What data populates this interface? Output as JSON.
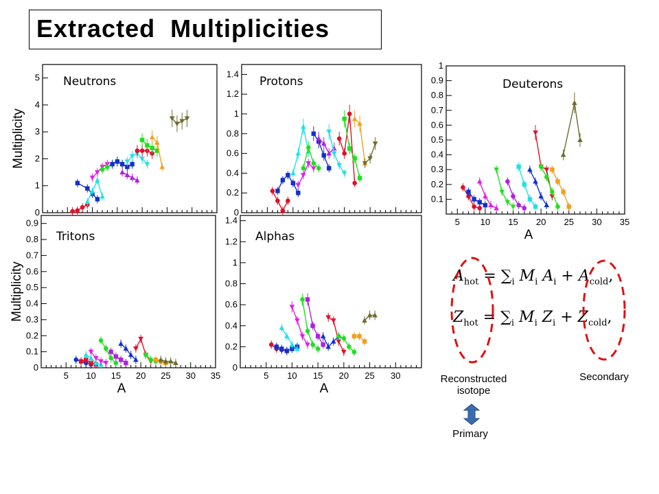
{
  "title": "Extracted  Multiplicities",
  "colors": {
    "red": "#e0102a",
    "blue": "#1030d0",
    "cyan": "#20e0e8",
    "magenta": "#e020e8",
    "green": "#20e020",
    "purple": "#b020e0",
    "orange": "#f0a020",
    "olive": "#706a30",
    "darkblue": "#1a5ad8",
    "dashed_ellipse": "#e01010",
    "arrow": "#3a6ab0"
  },
  "chart_data": [
    {
      "type": "scatter",
      "title": "Neutrons",
      "xlabel": "",
      "ylabel": "Multiplicity",
      "xlim": [
        0,
        35
      ],
      "ylim": [
        0,
        5.5
      ],
      "yticks": [
        0,
        1,
        2,
        3,
        4,
        5
      ],
      "xticks": [],
      "series": [
        {
          "color": "red",
          "x": [
            6,
            7,
            8,
            9
          ],
          "y": [
            0.05,
            0.08,
            0.2,
            0.3
          ]
        },
        {
          "color": "blue",
          "x": [
            7,
            9,
            10,
            11
          ],
          "y": [
            1.1,
            0.9,
            0.7,
            0.5
          ]
        },
        {
          "color": "cyan",
          "x": [
            9,
            10,
            11,
            12
          ],
          "y": [
            0.4,
            0.8,
            1.2,
            0.6
          ]
        },
        {
          "color": "magenta",
          "x": [
            10,
            11,
            12,
            13
          ],
          "y": [
            1.3,
            1.5,
            1.7,
            1.8
          ]
        },
        {
          "color": "green",
          "x": [
            12,
            13,
            14,
            15,
            16
          ],
          "y": [
            1.6,
            1.7,
            1.8,
            1.9,
            1.8
          ]
        },
        {
          "color": "blue",
          "x": [
            14,
            15,
            16,
            17,
            18
          ],
          "y": [
            1.8,
            1.9,
            1.8,
            1.7,
            1.8
          ]
        },
        {
          "color": "purple",
          "x": [
            16,
            17,
            18,
            19
          ],
          "y": [
            1.5,
            1.4,
            1.3,
            1.2
          ]
        },
        {
          "color": "cyan",
          "x": [
            17,
            18,
            19,
            20,
            21
          ],
          "y": [
            1.9,
            2.1,
            2.2,
            2.0,
            1.8
          ]
        },
        {
          "color": "red",
          "x": [
            19,
            20,
            21,
            22
          ],
          "y": [
            2.3,
            2.3,
            2.3,
            2.2
          ]
        },
        {
          "color": "green",
          "x": [
            20,
            21,
            22,
            23
          ],
          "y": [
            2.7,
            2.5,
            2.4,
            2.3
          ]
        },
        {
          "color": "orange",
          "x": [
            22,
            23,
            24
          ],
          "y": [
            2.8,
            2.6,
            1.7
          ]
        },
        {
          "color": "olive",
          "x": [
            26,
            27,
            28,
            29
          ],
          "y": [
            3.5,
            3.3,
            3.4,
            3.5
          ]
        }
      ]
    },
    {
      "type": "scatter",
      "title": "Protons",
      "xlabel": "",
      "ylabel": "",
      "xlim": [
        0,
        35
      ],
      "ylim": [
        0,
        1.5
      ],
      "yticks": [
        0,
        0.2,
        0.4,
        0.6,
        0.8,
        1,
        1.2,
        1.4
      ],
      "xticks": [],
      "series": [
        {
          "color": "red",
          "x": [
            6,
            7,
            8,
            9
          ],
          "y": [
            0.22,
            0.12,
            0.02,
            0.12
          ]
        },
        {
          "color": "blue",
          "x": [
            7,
            8,
            9,
            10,
            11
          ],
          "y": [
            0.22,
            0.33,
            0.38,
            0.3,
            0.2
          ]
        },
        {
          "color": "cyan",
          "x": [
            10,
            11,
            12,
            13
          ],
          "y": [
            0.4,
            0.6,
            0.87,
            0.62
          ]
        },
        {
          "color": "magenta",
          "x": [
            11,
            12,
            13,
            14
          ],
          "y": [
            0.28,
            0.38,
            0.5,
            0.45
          ]
        },
        {
          "color": "green",
          "x": [
            12,
            13,
            14,
            15
          ],
          "y": [
            0.45,
            0.66,
            0.5,
            0.45
          ]
        },
        {
          "color": "blue",
          "x": [
            14,
            15,
            16,
            17
          ],
          "y": [
            0.8,
            0.72,
            0.58,
            0.45
          ]
        },
        {
          "color": "purple",
          "x": [
            15,
            16,
            17,
            18
          ],
          "y": [
            0.75,
            0.7,
            0.6,
            0.65
          ]
        },
        {
          "color": "cyan",
          "x": [
            17,
            18,
            19,
            20
          ],
          "y": [
            0.82,
            0.6,
            0.48,
            0.4
          ]
        },
        {
          "color": "red",
          "x": [
            19,
            20,
            21,
            22
          ],
          "y": [
            0.75,
            0.6,
            1.0,
            0.3
          ]
        },
        {
          "color": "green",
          "x": [
            20,
            21,
            22,
            23
          ],
          "y": [
            0.95,
            0.65,
            0.55,
            0.35
          ]
        },
        {
          "color": "orange",
          "x": [
            22,
            23,
            24
          ],
          "y": [
            0.95,
            0.9,
            0.5
          ]
        },
        {
          "color": "olive",
          "x": [
            24,
            25,
            26
          ],
          "y": [
            0.5,
            0.55,
            0.7
          ]
        }
      ]
    },
    {
      "type": "scatter",
      "title": "Deuterons",
      "xlabel": "A",
      "ylabel": "",
      "xlim": [
        3,
        35
      ],
      "ylim": [
        0,
        1
      ],
      "yticks": [
        0.1,
        0.2,
        0.3,
        0.4,
        0.5,
        0.6,
        0.7,
        0.8,
        0.9,
        1
      ],
      "xticks": [
        5,
        10,
        15,
        20,
        25,
        30,
        35
      ],
      "series": [
        {
          "color": "red",
          "x": [
            6,
            7,
            8,
            9
          ],
          "y": [
            0.18,
            0.12,
            0.05,
            0.04
          ]
        },
        {
          "color": "blue",
          "x": [
            7,
            8,
            9,
            10
          ],
          "y": [
            0.15,
            0.1,
            0.08,
            0.06
          ]
        },
        {
          "color": "magenta",
          "x": [
            9,
            10,
            11,
            12
          ],
          "y": [
            0.22,
            0.12,
            0.06,
            0.04
          ]
        },
        {
          "color": "green",
          "x": [
            12,
            13,
            14,
            15
          ],
          "y": [
            0.3,
            0.15,
            0.08,
            0.05
          ]
        },
        {
          "color": "purple",
          "x": [
            14,
            15,
            16,
            17
          ],
          "y": [
            0.22,
            0.12,
            0.06,
            0.04
          ]
        },
        {
          "color": "cyan",
          "x": [
            16,
            17,
            18,
            19
          ],
          "y": [
            0.32,
            0.2,
            0.1,
            0.05
          ]
        },
        {
          "color": "blue",
          "x": [
            18,
            19,
            20,
            21
          ],
          "y": [
            0.3,
            0.22,
            0.12,
            0.06
          ]
        },
        {
          "color": "red",
          "x": [
            19,
            20,
            21,
            22
          ],
          "y": [
            0.55,
            0.32,
            0.3,
            0.12
          ]
        },
        {
          "color": "green",
          "x": [
            20,
            21,
            22,
            23
          ],
          "y": [
            0.32,
            0.25,
            0.15,
            0.05
          ]
        },
        {
          "color": "orange",
          "x": [
            22,
            23,
            24,
            25
          ],
          "y": [
            0.3,
            0.22,
            0.15,
            0.05
          ]
        },
        {
          "color": "olive",
          "x": [
            24,
            26,
            27
          ],
          "y": [
            0.4,
            0.75,
            0.5
          ]
        }
      ]
    },
    {
      "type": "scatter",
      "title": "Tritons",
      "xlabel": "A",
      "ylabel": "Multiplicity",
      "xlim": [
        0,
        35
      ],
      "ylim": [
        0,
        0.95
      ],
      "yticks": [
        0,
        0.1,
        0.2,
        0.3,
        0.4,
        0.5,
        0.6,
        0.7,
        0.8,
        0.9
      ],
      "xticks": [
        5,
        10,
        15,
        20,
        25,
        30,
        35
      ],
      "series": [
        {
          "color": "blue",
          "x": [
            7,
            8,
            9,
            10
          ],
          "y": [
            0.05,
            0.04,
            0.03,
            0.02
          ]
        },
        {
          "color": "red",
          "x": [
            8,
            9,
            10,
            11
          ],
          "y": [
            0.04,
            0.05,
            0.03,
            0.02
          ]
        },
        {
          "color": "cyan",
          "x": [
            9,
            10,
            11,
            12
          ],
          "y": [
            0.08,
            0.06,
            0.03,
            0.02
          ]
        },
        {
          "color": "magenta",
          "x": [
            10,
            11,
            12,
            13
          ],
          "y": [
            0.1,
            0.06,
            0.04,
            0.03
          ]
        },
        {
          "color": "green",
          "x": [
            12,
            13,
            14,
            15
          ],
          "y": [
            0.17,
            0.12,
            0.06,
            0.03
          ]
        },
        {
          "color": "purple",
          "x": [
            14,
            15,
            16,
            17
          ],
          "y": [
            0.1,
            0.07,
            0.05,
            0.03
          ]
        },
        {
          "color": "blue",
          "x": [
            16,
            17,
            18,
            19
          ],
          "y": [
            0.15,
            0.12,
            0.08,
            0.05
          ]
        },
        {
          "color": "red",
          "x": [
            19,
            20,
            21,
            22
          ],
          "y": [
            0.12,
            0.18,
            0.08,
            0.04
          ]
        },
        {
          "color": "green",
          "x": [
            21,
            22,
            23
          ],
          "y": [
            0.08,
            0.05,
            0.04
          ]
        },
        {
          "color": "orange",
          "x": [
            23,
            24,
            25
          ],
          "y": [
            0.05,
            0.04,
            0.03
          ]
        },
        {
          "color": "olive",
          "x": [
            24,
            25,
            26,
            27
          ],
          "y": [
            0.05,
            0.04,
            0.04,
            0.03
          ]
        }
      ]
    },
    {
      "type": "scatter",
      "title": "Alphas",
      "xlabel": "A",
      "ylabel": "",
      "xlim": [
        0,
        35
      ],
      "ylim": [
        0,
        1.45
      ],
      "yticks": [
        0,
        0.2,
        0.4,
        0.6,
        0.8,
        1,
        1.2,
        1.4
      ],
      "xticks": [
        5,
        10,
        15,
        20,
        25,
        30
      ],
      "series": [
        {
          "color": "red",
          "x": [
            6,
            7,
            8,
            9
          ],
          "y": [
            0.22,
            0.18,
            0.17,
            0.16
          ]
        },
        {
          "color": "blue",
          "x": [
            7,
            8,
            9,
            10,
            11
          ],
          "y": [
            0.2,
            0.18,
            0.16,
            0.18,
            0.2
          ]
        },
        {
          "color": "cyan",
          "x": [
            8,
            9,
            10,
            11
          ],
          "y": [
            0.38,
            0.3,
            0.22,
            0.18
          ]
        },
        {
          "color": "magenta",
          "x": [
            10,
            11,
            12,
            13
          ],
          "y": [
            0.58,
            0.45,
            0.3,
            0.22
          ]
        },
        {
          "color": "green",
          "x": [
            12,
            13,
            14,
            15
          ],
          "y": [
            0.65,
            0.35,
            0.22,
            0.18
          ]
        },
        {
          "color": "purple",
          "x": [
            13,
            14,
            15,
            16
          ],
          "y": [
            0.65,
            0.4,
            0.3,
            0.22
          ]
        },
        {
          "color": "blue",
          "x": [
            16,
            17,
            18,
            19
          ],
          "y": [
            0.3,
            0.2,
            0.25,
            0.3
          ]
        },
        {
          "color": "red",
          "x": [
            17,
            18,
            19,
            20
          ],
          "y": [
            0.48,
            0.45,
            0.25,
            0.15
          ]
        },
        {
          "color": "green",
          "x": [
            19,
            20,
            21,
            22
          ],
          "y": [
            0.3,
            0.28,
            0.2,
            0.15
          ]
        },
        {
          "color": "orange",
          "x": [
            22,
            23,
            24
          ],
          "y": [
            0.3,
            0.3,
            0.25
          ]
        },
        {
          "color": "olive",
          "x": [
            24,
            25,
            26
          ],
          "y": [
            0.45,
            0.5,
            0.5
          ]
        }
      ]
    }
  ],
  "formula": {
    "row1": {
      "lhs": "A",
      "lhs_sub": "hot",
      "eq": "= ∑",
      "sum_index": "i",
      "term": "M",
      "term_sub": "i",
      "term2": "A",
      "term2_sub": "i",
      "plus": "+",
      "rhs": "A",
      "rhs_sub": "cold",
      "end": ","
    },
    "row2": {
      "lhs": "Z",
      "lhs_sub": "hot",
      "eq": "= ∑",
      "sum_index": "i",
      "term": "M",
      "term_sub": "i",
      "term2": "Z",
      "term2_sub": "i",
      "plus": "+",
      "rhs": "Z",
      "rhs_sub": "cold",
      "end": ","
    }
  },
  "labels": {
    "reconstructed_line1": "Reconstructed",
    "reconstructed_line2": "isotope",
    "primary": "Primary",
    "secondary": "Secondary"
  }
}
